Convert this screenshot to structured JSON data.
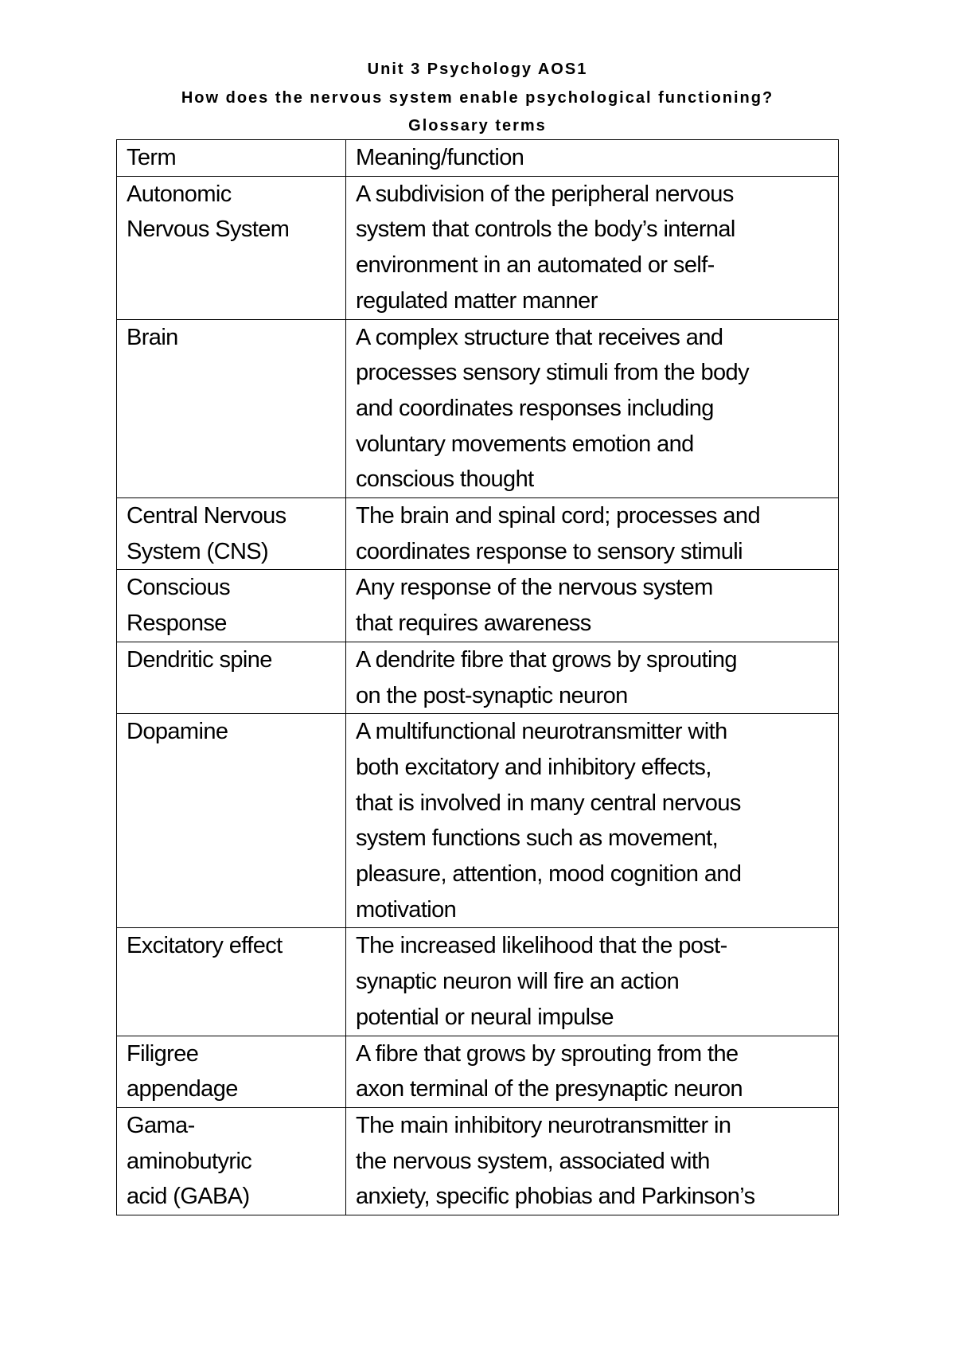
{
  "title": "Unit 3 Psychology AOS1",
  "subtitle": "How does the nervous system enable psychological functioning?",
  "section": "Glossary terms",
  "table": {
    "headers": [
      "Term",
      "Meaning/function"
    ],
    "rows": [
      {
        "term": [
          "Autonomic",
          "Nervous System"
        ],
        "meaning": [
          "A subdivision of the peripheral nervous",
          "system that controls the body’s internal",
          "environment in an automated or self-",
          "regulated matter manner"
        ]
      },
      {
        "term": [
          "Brain"
        ],
        "meaning": [
          "A complex structure that receives and",
          "processes sensory stimuli from the body",
          "and coordinates responses including",
          "voluntary movements emotion and",
          "conscious thought"
        ]
      },
      {
        "term": [
          "Central Nervous",
          "System (CNS)"
        ],
        "meaning": [
          "The brain and spinal cord; processes and",
          "coordinates response to sensory stimuli"
        ]
      },
      {
        "term": [
          "Conscious",
          "Response"
        ],
        "meaning": [
          "Any response of the nervous system",
          "that requires awareness"
        ]
      },
      {
        "term": [
          "Dendritic spine"
        ],
        "meaning": [
          "A dendrite fibre that grows by sprouting",
          "on the post-synaptic neuron"
        ]
      },
      {
        "term": [
          "Dopamine"
        ],
        "meaning": [
          "A multifunctional neurotransmitter with",
          "both excitatory and inhibitory effects,",
          "that is involved in many central nervous",
          "system functions such as movement,",
          "pleasure, attention, mood cognition and",
          "motivation"
        ]
      },
      {
        "term": [
          "Excitatory effect"
        ],
        "meaning": [
          "The increased likelihood that the post-",
          "synaptic neuron will fire an action",
          "potential or neural impulse"
        ]
      },
      {
        "term": [
          "Filigree",
          "appendage"
        ],
        "meaning": [
          "A fibre that grows by sprouting from the",
          "axon terminal of the presynaptic neuron"
        ]
      },
      {
        "term": [
          "Gama-",
          "aminobutyric",
          "acid (GABA)"
        ],
        "meaning": [
          "The main inhibitory neurotransmitter in",
          "the nervous system, associated with",
          "anxiety, specific phobias and Parkinson’s"
        ]
      }
    ]
  }
}
